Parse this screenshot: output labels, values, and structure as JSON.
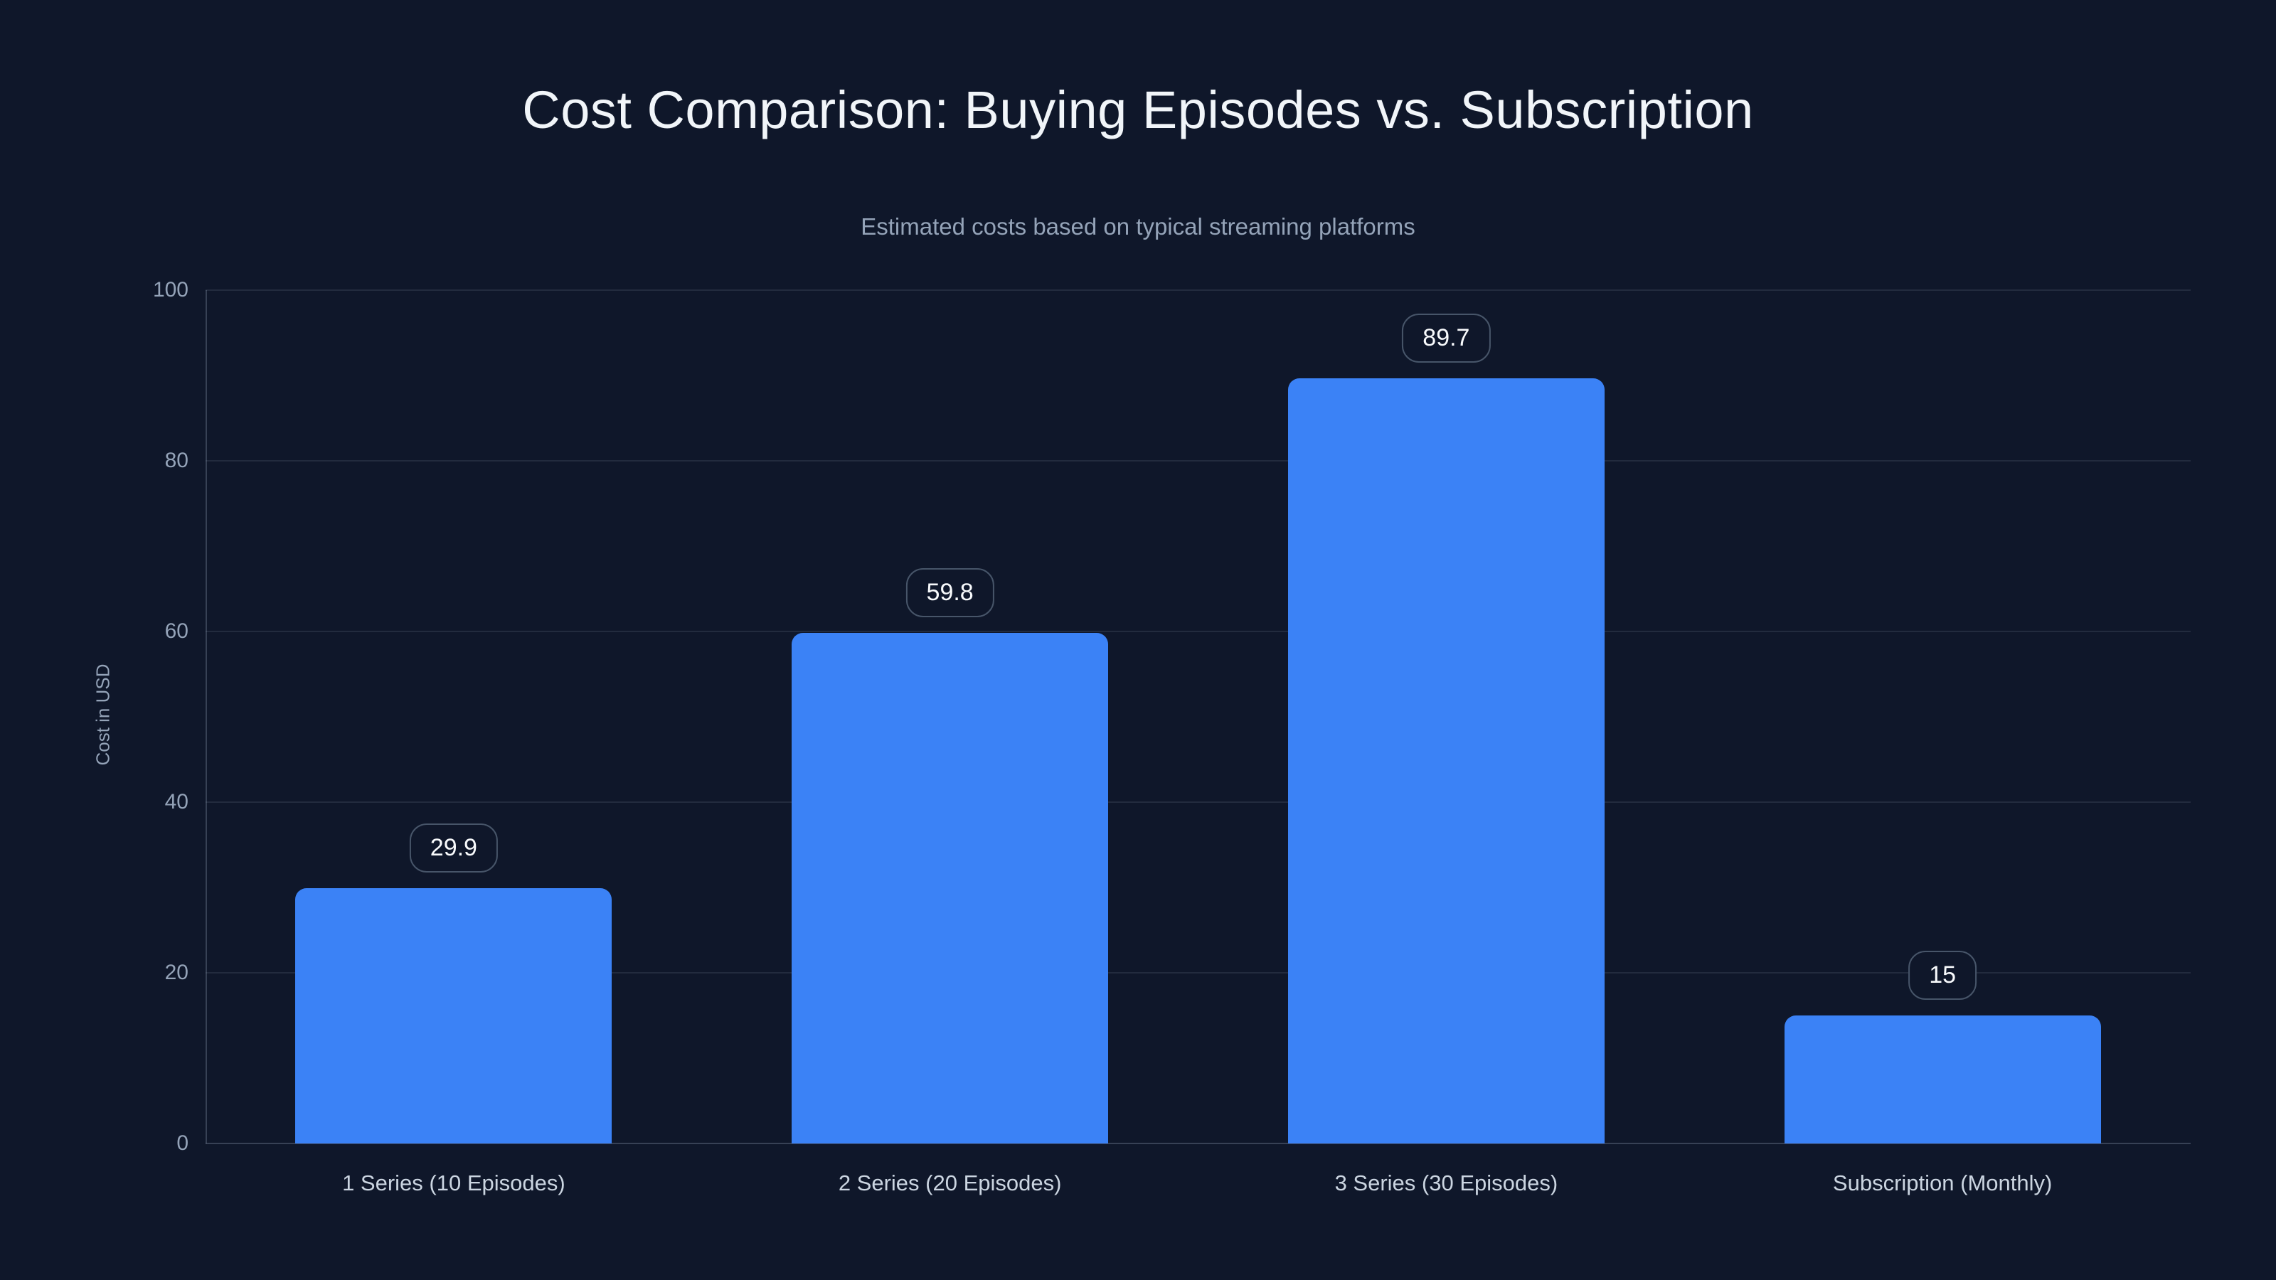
{
  "chart_data": {
    "type": "bar",
    "title": "Cost Comparison: Buying Episodes vs. Subscription",
    "subtitle": "Estimated costs based on typical streaming platforms",
    "categories": [
      "1 Series (10 Episodes)",
      "2 Series (20 Episodes)",
      "3 Series (30 Episodes)",
      "Subscription (Monthly)"
    ],
    "values": [
      29.9,
      59.8,
      89.7,
      15
    ],
    "value_labels": [
      "29.9",
      "59.8",
      "89.7",
      "15"
    ],
    "xlabel": "",
    "ylabel": "Cost in USD",
    "ylim": [
      0,
      100
    ],
    "yticks": [
      0,
      20,
      40,
      60,
      80,
      100
    ],
    "grid": "horizontal gridlines at each y tick, no vertical gridlines",
    "legend": "none",
    "bar_color": "#3b82f6"
  },
  "theme": {
    "background": "#0f172a",
    "title_color": "#f1f5f9",
    "subtitle_color": "#94a3b8",
    "axis_tick_color": "#94a3b8",
    "category_label_color": "#cbd5e1",
    "gridline_color": "rgba(148,163,184,0.15)",
    "axis_line_color": "rgba(148,163,184,0.30)",
    "bar_color": "#3b82f6",
    "badge_background": "#0f172a",
    "badge_border_color": "#475569",
    "badge_text_color": "#f8fafc"
  }
}
